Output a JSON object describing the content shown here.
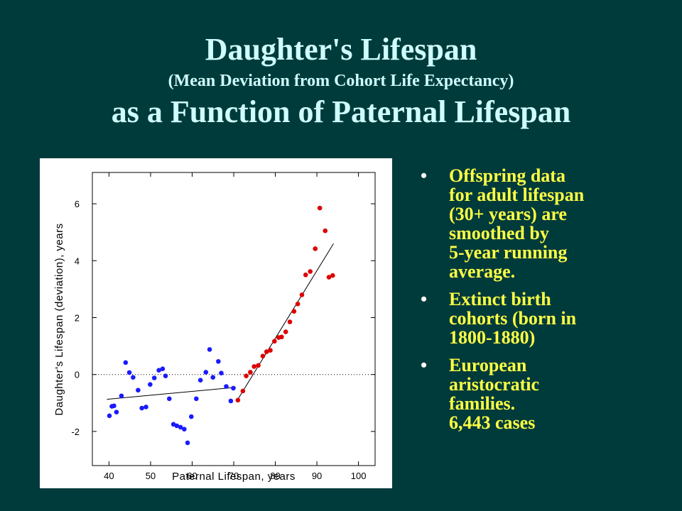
{
  "slide": {
    "title_line1": "Daughter's Lifespan",
    "title_line2": "(Mean Deviation from Cohort Life Expectancy)",
    "title_line3": "as a Function of Paternal Lifespan"
  },
  "bullets": [
    "Offspring data\nfor adult lifespan\n(30+ years) are\nsmoothed by\n5-year running\naverage.",
    "Extinct birth\ncohorts (born in\n1800-1880)",
    "European\naristocratic\nfamilies.\n6,443 cases"
  ],
  "colors": {
    "background": "#003b3b",
    "title": "#cffdfd",
    "bullet_text": "#ffff44",
    "point_blue": "#1a1aff",
    "point_red": "#dd0000"
  },
  "chart_data": {
    "type": "scatter",
    "xlabel": "Paternal Lifespan, years",
    "ylabel": "Daughter's Lifespan (deviation), years",
    "xlim": [
      36,
      104
    ],
    "ylim": [
      -3.2,
      7.1
    ],
    "xticks": [
      40,
      50,
      60,
      70,
      80,
      90,
      100
    ],
    "yticks": [
      -2,
      0,
      2,
      4,
      6
    ],
    "reference_line_y": 0,
    "series": [
      {
        "color": "#1a1aff",
        "points": [
          [
            40.1,
            -1.45
          ],
          [
            40.7,
            -1.12
          ],
          [
            41.2,
            -1.1
          ],
          [
            41.8,
            -1.32
          ],
          [
            43.0,
            -0.75
          ],
          [
            44.0,
            0.42
          ],
          [
            44.9,
            0.07
          ],
          [
            45.8,
            -0.1
          ],
          [
            47.0,
            -0.55
          ],
          [
            47.9,
            -1.18
          ],
          [
            48.9,
            -1.14
          ],
          [
            49.9,
            -0.35
          ],
          [
            50.9,
            -0.12
          ],
          [
            52.0,
            0.15
          ],
          [
            52.9,
            0.2
          ],
          [
            53.6,
            -0.05
          ],
          [
            54.5,
            -0.85
          ],
          [
            55.5,
            -1.75
          ],
          [
            56.3,
            -1.8
          ],
          [
            57.2,
            -1.85
          ],
          [
            58.1,
            -1.92
          ],
          [
            58.9,
            -2.4
          ],
          [
            59.8,
            -1.48
          ],
          [
            61.0,
            -0.85
          ],
          [
            62.0,
            -0.2
          ],
          [
            63.3,
            0.08
          ],
          [
            64.2,
            0.88
          ],
          [
            65.0,
            -0.1
          ],
          [
            66.3,
            0.46
          ],
          [
            67.0,
            0.05
          ],
          [
            68.2,
            -0.42
          ],
          [
            69.3,
            -0.93
          ],
          [
            69.9,
            -0.48
          ]
        ]
      },
      {
        "color": "#dd0000",
        "points": [
          [
            71.0,
            -0.9
          ],
          [
            72.2,
            -0.58
          ],
          [
            73.0,
            -0.05
          ],
          [
            74.0,
            0.08
          ],
          [
            74.9,
            0.28
          ],
          [
            75.9,
            0.32
          ],
          [
            77.0,
            0.65
          ],
          [
            77.9,
            0.8
          ],
          [
            78.8,
            0.85
          ],
          [
            79.8,
            1.17
          ],
          [
            80.8,
            1.3
          ],
          [
            81.5,
            1.32
          ],
          [
            82.5,
            1.5
          ],
          [
            83.5,
            1.85
          ],
          [
            84.5,
            2.22
          ],
          [
            85.4,
            2.48
          ],
          [
            86.4,
            2.8
          ],
          [
            87.3,
            3.5
          ],
          [
            88.4,
            3.62
          ],
          [
            89.6,
            4.42
          ],
          [
            90.7,
            5.85
          ],
          [
            92.0,
            5.05
          ],
          [
            92.9,
            3.42
          ],
          [
            93.8,
            3.48
          ]
        ]
      }
    ],
    "fit_lines": [
      {
        "points": [
          [
            39.5,
            -0.87
          ],
          [
            70.5,
            -0.45
          ]
        ]
      },
      {
        "points": [
          [
            71.0,
            -0.87
          ],
          [
            94.0,
            4.6
          ]
        ]
      }
    ]
  }
}
